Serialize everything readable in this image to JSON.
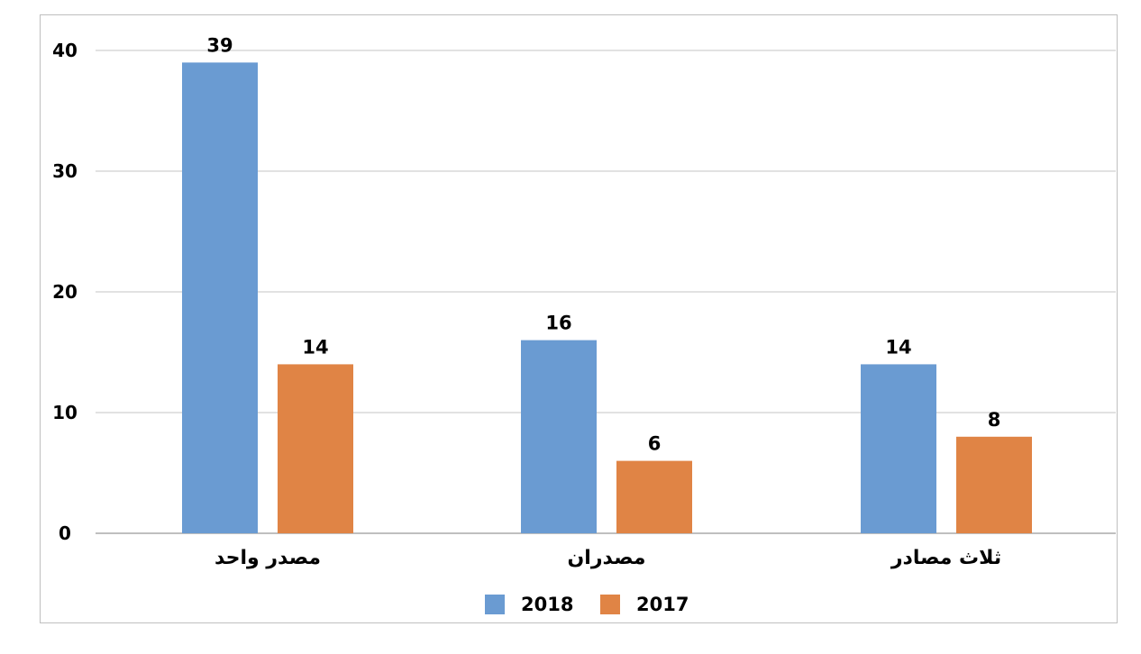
{
  "chart_data": {
    "type": "bar",
    "categories": [
      "مصدر واحد",
      "مصدران",
      "ثلاث مصادر"
    ],
    "series": [
      {
        "name": "2018",
        "values": [
          39,
          16,
          14
        ],
        "color": "#6a9bd2"
      },
      {
        "name": "2017",
        "values": [
          14,
          6,
          8
        ],
        "color": "#e08445"
      }
    ],
    "ylim": [
      0,
      40
    ],
    "yticks": [
      0,
      10,
      20,
      30,
      40
    ],
    "grid": true,
    "legend_position": "bottom",
    "data_labels": true,
    "title": "",
    "xlabel": "",
    "ylabel": ""
  }
}
